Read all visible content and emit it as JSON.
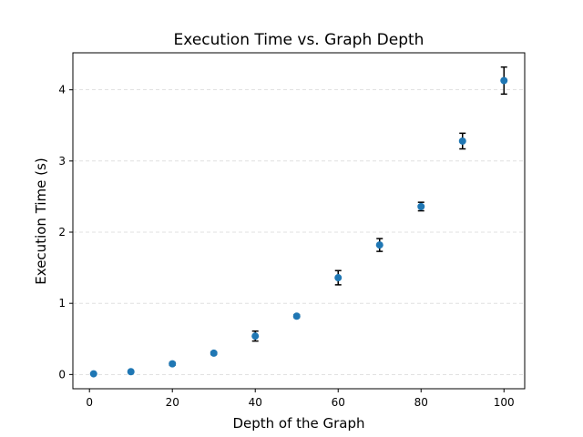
{
  "chart_data": {
    "type": "scatter",
    "title": "Execution Time vs. Graph Depth",
    "xlabel": "Depth of the Graph",
    "ylabel": "Execution Time (s)",
    "xlim": [
      -4,
      105
    ],
    "ylim": [
      -0.2,
      4.52
    ],
    "xticks": [
      0,
      20,
      40,
      60,
      80,
      100
    ],
    "yticks": [
      0,
      1,
      2,
      3,
      4
    ],
    "grid": "y-dashed",
    "marker_color": "#1f77b4",
    "error_color": "#000000",
    "points": [
      {
        "x": 1,
        "y": 0.01,
        "err": 0.01
      },
      {
        "x": 10,
        "y": 0.04,
        "err": 0.01
      },
      {
        "x": 20,
        "y": 0.15,
        "err": 0.02
      },
      {
        "x": 30,
        "y": 0.3,
        "err": 0.02
      },
      {
        "x": 40,
        "y": 0.54,
        "err": 0.07
      },
      {
        "x": 50,
        "y": 0.82,
        "err": 0.02
      },
      {
        "x": 60,
        "y": 1.36,
        "err": 0.1
      },
      {
        "x": 70,
        "y": 1.82,
        "err": 0.09
      },
      {
        "x": 80,
        "y": 2.36,
        "err": 0.06
      },
      {
        "x": 90,
        "y": 3.28,
        "err": 0.11
      },
      {
        "x": 100,
        "y": 4.13,
        "err": 0.19
      }
    ]
  }
}
